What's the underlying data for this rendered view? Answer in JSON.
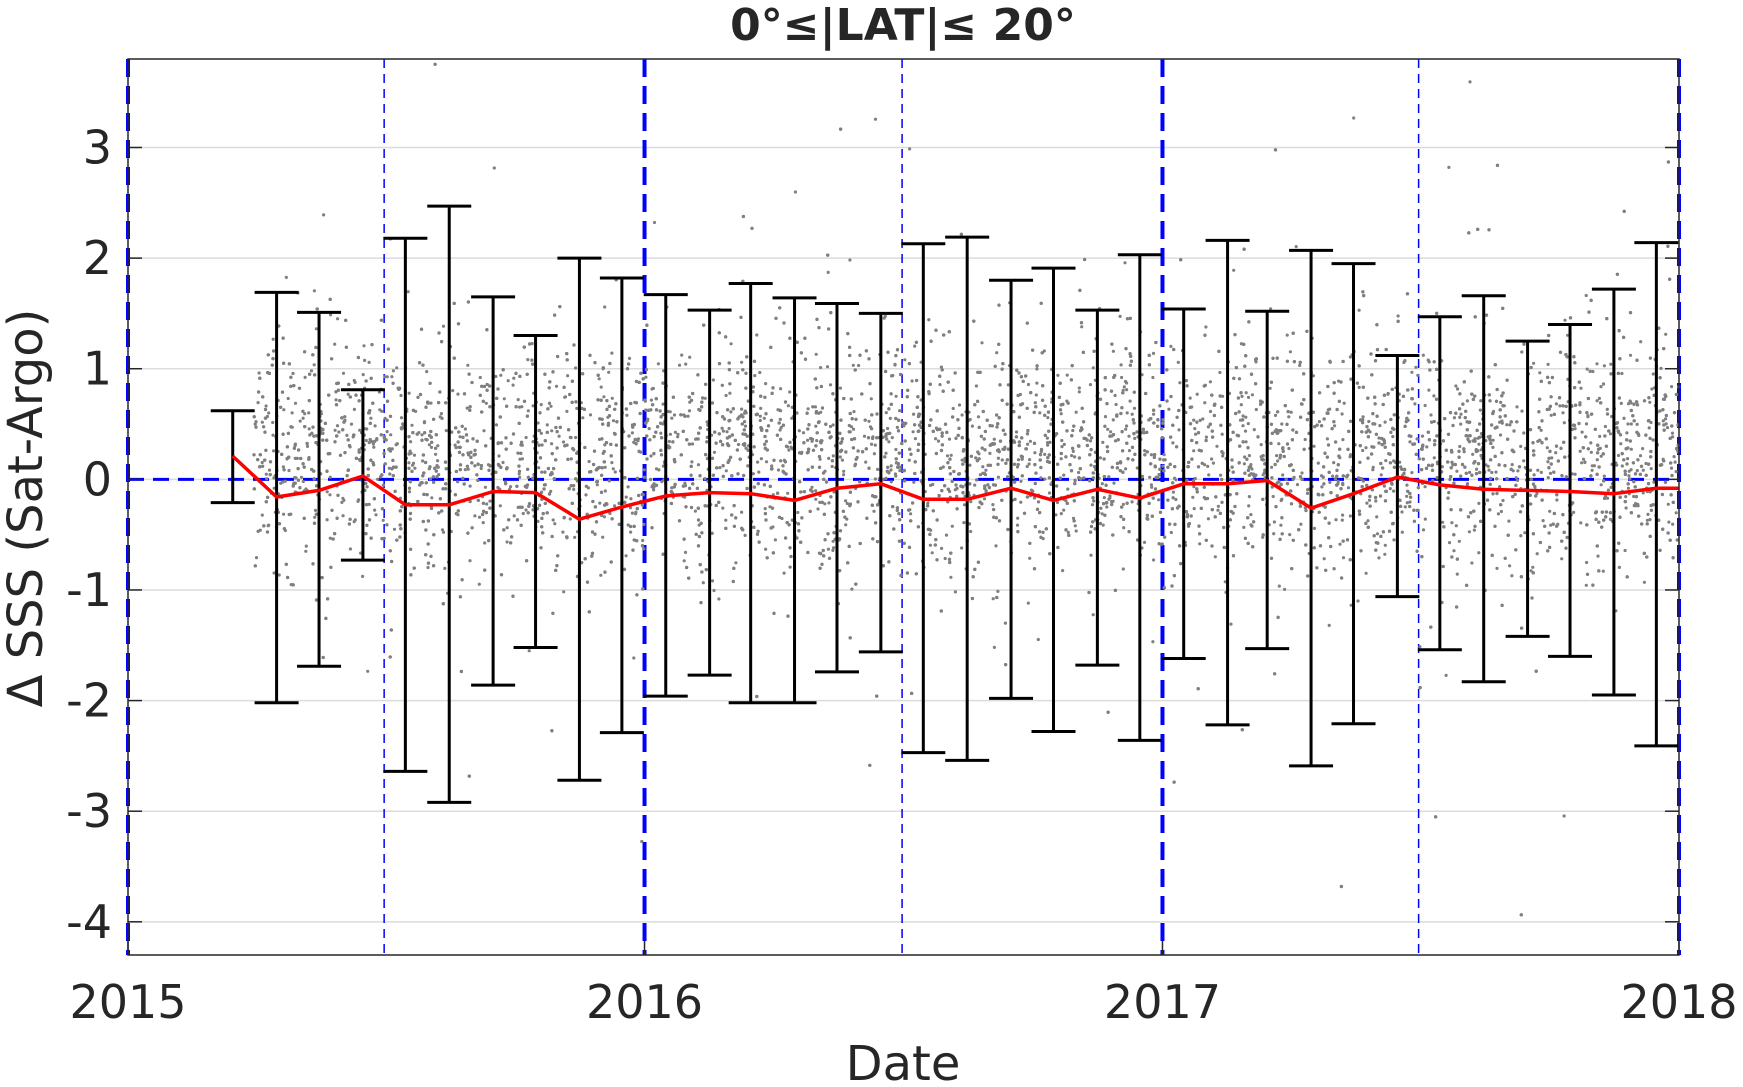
{
  "chart_data": {
    "type": "scatter",
    "title": "0°≤|LAT|≤ 20°",
    "xlabel": "Date",
    "ylabel": "Δ SSS (Sat-Argo)",
    "xlim": [
      "2015-01-01",
      "2018-01-01"
    ],
    "ylim": [
      -4.3,
      3.8
    ],
    "x_ticks": [
      "2015",
      "2016",
      "2017",
      "2018"
    ],
    "y_ticks": [
      3,
      2,
      1,
      0,
      -1,
      -2,
      -3,
      -4
    ],
    "y_tick_labels": [
      "3",
      "2",
      "1",
      "0",
      "-1",
      "-2",
      "-3",
      "-4"
    ],
    "grid": true,
    "colors": {
      "scatter": "#808080",
      "mean_line": "#ff0000",
      "error_bars": "#000000",
      "reference_lines": "#0000ff"
    },
    "reference_lines": {
      "zero_line": 0,
      "year_lines": [
        "2015-01-01",
        "2016-01-01",
        "2017-01-01",
        "2018-01-01"
      ],
      "half_year_lines": [
        "2015-07-01",
        "2016-07-01",
        "2017-07-01"
      ]
    },
    "scatter_cloud": {
      "x_range": [
        "2015-03-31",
        "2018-01-01"
      ],
      "center": 0.2,
      "spread": 0.5
    },
    "series": [
      {
        "type": "error_bar",
        "x": [
          "2015-03-16",
          "2015-04-16",
          "2015-05-16",
          "2015-06-16",
          "2015-07-16",
          "2015-08-16",
          "2015-09-16",
          "2015-10-16",
          "2015-11-16",
          "2015-12-16",
          "2016-01-16",
          "2016-02-16",
          "2016-03-16",
          "2016-04-16",
          "2016-05-16",
          "2016-06-16",
          "2016-07-16",
          "2016-08-16",
          "2016-09-16",
          "2016-10-16",
          "2016-11-16",
          "2016-12-16",
          "2017-01-16",
          "2017-02-16",
          "2017-03-16",
          "2017-04-16",
          "2017-05-16",
          "2017-06-16",
          "2017-07-16",
          "2017-08-16",
          "2017-09-16",
          "2017-10-16",
          "2017-11-16",
          "2017-12-16"
        ],
        "mean": [
          0.21,
          -0.16,
          -0.1,
          0.03,
          -0.23,
          -0.23,
          -0.11,
          -0.12,
          -0.36,
          -0.25,
          -0.15,
          -0.12,
          -0.13,
          -0.19,
          -0.08,
          -0.04,
          -0.18,
          -0.18,
          -0.08,
          -0.19,
          -0.09,
          -0.17,
          -0.04,
          -0.04,
          -0.01,
          -0.26,
          -0.13,
          0.02,
          -0.05,
          -0.09,
          -0.1,
          -0.11,
          -0.13,
          -0.08
        ],
        "upper": [
          0.62,
          1.69,
          1.51,
          0.81,
          2.18,
          2.47,
          1.65,
          1.3,
          2.0,
          1.82,
          1.67,
          1.53,
          1.77,
          1.64,
          1.59,
          1.5,
          2.13,
          2.19,
          1.8,
          1.91,
          1.53,
          2.03,
          1.54,
          2.16,
          1.52,
          2.07,
          1.95,
          1.12,
          1.47,
          1.66,
          1.25,
          1.4,
          1.72,
          2.14
        ],
        "lower": [
          -0.21,
          -2.02,
          -1.69,
          -0.73,
          -2.64,
          -2.92,
          -1.86,
          -1.52,
          -2.72,
          -2.29,
          -1.96,
          -1.77,
          -2.02,
          -2.02,
          -1.74,
          -1.56,
          -2.47,
          -2.54,
          -1.98,
          -2.28,
          -1.68,
          -2.36,
          -1.62,
          -2.22,
          -1.53,
          -2.59,
          -2.21,
          -1.06,
          -1.54,
          -1.83,
          -1.42,
          -1.6,
          -1.95,
          -2.41
        ]
      }
    ]
  }
}
